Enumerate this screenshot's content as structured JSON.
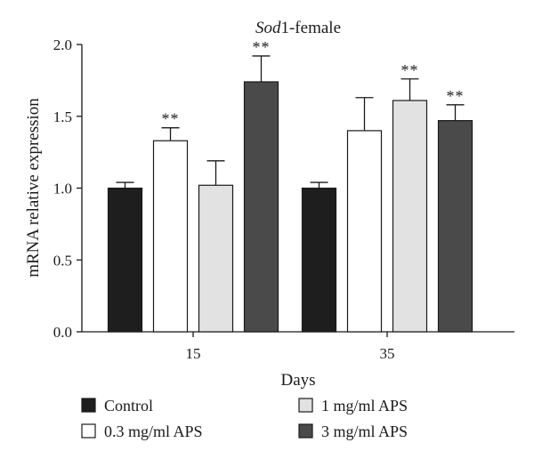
{
  "chart_data": {
    "type": "bar",
    "title_italic": "Sod",
    "title_rest": "1-female",
    "xlabel": "Days",
    "ylabel": "mRNA relative expression",
    "ylim": [
      0,
      2.0
    ],
    "yticks": [
      "0.0",
      "0.5",
      "1.0",
      "1.5",
      "2.0"
    ],
    "categories": [
      "15",
      "35"
    ],
    "series": [
      {
        "name": "Control",
        "color": "#1e1e1e",
        "values": [
          1.0,
          1.0
        ],
        "errors": [
          0.04,
          0.04
        ],
        "sig": [
          "",
          ""
        ]
      },
      {
        "name": "0.3 mg/ml APS",
        "color": "#ffffff",
        "values": [
          1.33,
          1.4
        ],
        "errors": [
          0.09,
          0.23
        ],
        "sig": [
          "**",
          ""
        ]
      },
      {
        "name": "1 mg/ml APS",
        "color": "#e2e2e2",
        "values": [
          1.02,
          1.61
        ],
        "errors": [
          0.17,
          0.15
        ],
        "sig": [
          "",
          "**"
        ]
      },
      {
        "name": "3 mg/ml APS",
        "color": "#4a4a4a",
        "values": [
          1.74,
          1.47
        ],
        "errors": [
          0.18,
          0.11
        ],
        "sig": [
          "**",
          "**"
        ]
      }
    ],
    "legend": "bottom",
    "grid": false
  }
}
